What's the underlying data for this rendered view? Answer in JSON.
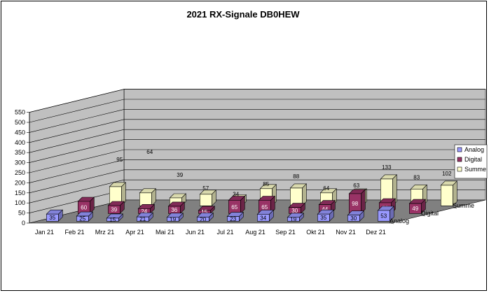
{
  "chart_data": {
    "type": "bar",
    "title": "2021 RX-Signale DB0HEW",
    "categories": [
      "Jan 21",
      "Feb 21",
      "Mrz 21",
      "Apr 21",
      "Mai 21",
      "Jun 21",
      "Jul 21",
      "Aug 21",
      "Sep 21",
      "Okt 21",
      "Nov 21",
      "Dez 21"
    ],
    "series": [
      {
        "name": "Analog",
        "values": [
          35,
          25,
          15,
          21,
          19,
          20,
          23,
          34,
          19,
          35,
          30,
          53
        ]
      },
      {
        "name": "Digital",
        "values": [
          60,
          39,
          24,
          36,
          15,
          65,
          65,
          30,
          44,
          98,
          53,
          49
        ]
      },
      {
        "name": "Summe",
        "values": [
          95,
          64,
          39,
          57,
          34,
          85,
          88,
          64,
          63,
          133,
          83,
          102
        ]
      }
    ],
    "y_ticks": [
      "0",
      "50",
      "100",
      "150",
      "200",
      "250",
      "300",
      "350",
      "400",
      "450",
      "500",
      "550"
    ],
    "ylim": [
      0,
      550
    ],
    "grid": true,
    "legend": "right",
    "colors": {
      "Analog": "#9999ff",
      "Digital": "#993366",
      "Summe": "#ffffcc",
      "wall": "#c0c0c0",
      "floor": "#808080"
    }
  }
}
